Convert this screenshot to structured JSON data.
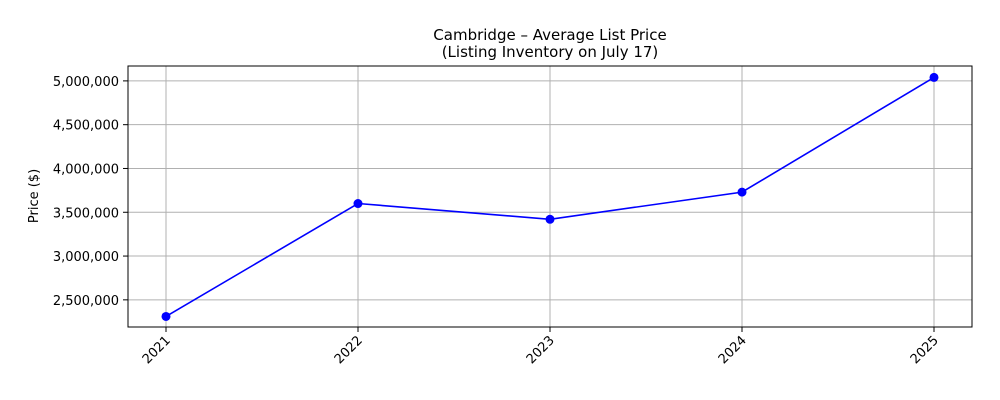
{
  "chart_data": {
    "type": "line",
    "title": "Cambridge – Average List Price",
    "subtitle": "(Listing Inventory on July 17)",
    "xlabel": "",
    "ylabel": "Price ($)",
    "categories": [
      "2021",
      "2022",
      "2023",
      "2024",
      "2025"
    ],
    "series": [
      {
        "values": [
          2310000,
          3600000,
          3420000,
          3730000,
          5040000
        ],
        "color": "#0000ff",
        "marker": "circle"
      }
    ],
    "ylim": [
      2190000,
      5170000
    ],
    "yticks": [
      2500000,
      3000000,
      3500000,
      4000000,
      4500000,
      5000000
    ],
    "ytick_labels": [
      "2,500,000",
      "3,000,000",
      "3,500,000",
      "4,000,000",
      "4,500,000",
      "5,000,000"
    ],
    "grid": true,
    "xtick_rotation": 45
  }
}
